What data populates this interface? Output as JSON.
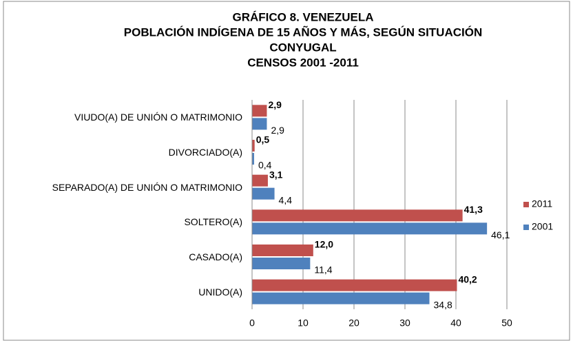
{
  "chart_data": {
    "type": "bar",
    "orientation": "horizontal",
    "title": [
      "GRÁFICO 8. VENEZUELA",
      "POBLACIÓN INDÍGENA DE 15 AÑOS Y MÁS, SEGÚN SITUACIÓN",
      "CONYUGAL",
      "CENSOS 2001 -2011"
    ],
    "categories": [
      "VIUDO(A) DE UNIÓN O MATRIMONIO",
      "DIVORCIADO(A)",
      "SEPARADO(A) DE UNIÓN O MATRIMONIO",
      "SOLTERO(A)",
      "CASADO(A)",
      "UNIDO(A)"
    ],
    "series": [
      {
        "name": "2011",
        "color": "#c0504d",
        "values": [
          2.9,
          0.5,
          3.1,
          41.3,
          12.0,
          40.2
        ],
        "value_labels": [
          "2,9",
          "0,5",
          "3,1",
          "41,3",
          "12,0",
          "40,2"
        ]
      },
      {
        "name": "2001",
        "color": "#4f81bd",
        "values": [
          2.9,
          0.4,
          4.4,
          46.1,
          11.4,
          34.8
        ],
        "value_labels": [
          "2,9",
          "0,4",
          "4,4",
          "46,1",
          "11,4",
          "34,8"
        ]
      }
    ],
    "xlim": [
      0,
      50
    ],
    "xticks": [
      0,
      10,
      20,
      30,
      40,
      50
    ],
    "grid": true,
    "legend": "right"
  }
}
